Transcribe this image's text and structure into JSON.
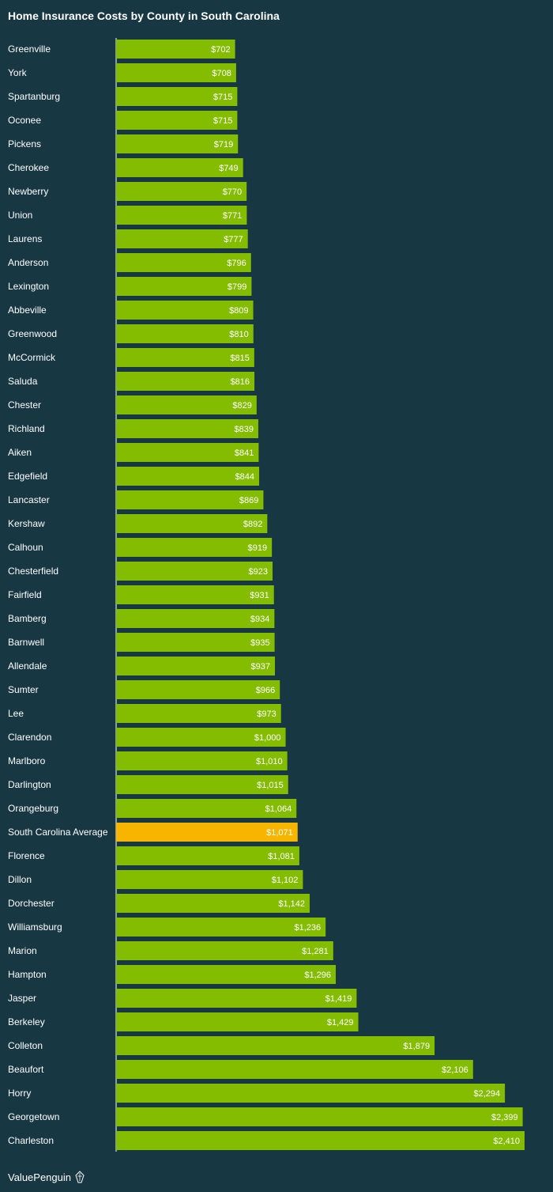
{
  "brand": {
    "name": "ValuePenguin",
    "icon": "penguin-logo-icon"
  },
  "colors": {
    "background": "#173743",
    "bar": "#84bd00",
    "highlight": "#f7b500",
    "axis": "#ffffff",
    "text": "#ffffff"
  },
  "chart_data": {
    "type": "bar",
    "orientation": "horizontal",
    "title": "Home Insurance Costs by County in South Carolina",
    "xlabel": "",
    "ylabel": "",
    "xlim": [
      0,
      2410
    ],
    "grid": false,
    "legend": "none",
    "highlight_category": "South Carolina Average",
    "categories": [
      "Greenville",
      "York",
      "Spartanburg",
      "Oconee",
      "Pickens",
      "Cherokee",
      "Newberry",
      "Union",
      "Laurens",
      "Anderson",
      "Lexington",
      "Abbeville",
      "Greenwood",
      "McCormick",
      "Saluda",
      "Chester",
      "Richland",
      "Aiken",
      "Edgefield",
      "Lancaster",
      "Kershaw",
      "Calhoun",
      "Chesterfield",
      "Fairfield",
      "Bamberg",
      "Barnwell",
      "Allendale",
      "Sumter",
      "Lee",
      "Clarendon",
      "Marlboro",
      "Darlington",
      "Orangeburg",
      "South Carolina Average",
      "Florence",
      "Dillon",
      "Dorchester",
      "Williamsburg",
      "Marion",
      "Hampton",
      "Jasper",
      "Berkeley",
      "Colleton",
      "Beaufort",
      "Horry",
      "Georgetown",
      "Charleston"
    ],
    "values": [
      702,
      708,
      715,
      715,
      719,
      749,
      770,
      771,
      777,
      796,
      799,
      809,
      810,
      815,
      816,
      829,
      839,
      841,
      844,
      869,
      892,
      919,
      923,
      931,
      934,
      935,
      937,
      966,
      973,
      1000,
      1010,
      1015,
      1064,
      1071,
      1081,
      1102,
      1142,
      1236,
      1281,
      1296,
      1419,
      1429,
      1879,
      2106,
      2294,
      2399,
      2410
    ],
    "value_labels": [
      "$702",
      "$708",
      "$715",
      "$715",
      "$719",
      "$749",
      "$770",
      "$771",
      "$777",
      "$796",
      "$799",
      "$809",
      "$810",
      "$815",
      "$816",
      "$829",
      "$839",
      "$841",
      "$844",
      "$869",
      "$892",
      "$919",
      "$923",
      "$931",
      "$934",
      "$935",
      "$937",
      "$966",
      "$973",
      "$1,000",
      "$1,010",
      "$1,015",
      "$1,064",
      "$1,071",
      "$1,081",
      "$1,102",
      "$1,142",
      "$1,236",
      "$1,281",
      "$1,296",
      "$1,419",
      "$1,429",
      "$1,879",
      "$2,106",
      "$2,294",
      "$2,399",
      "$2,410"
    ]
  }
}
